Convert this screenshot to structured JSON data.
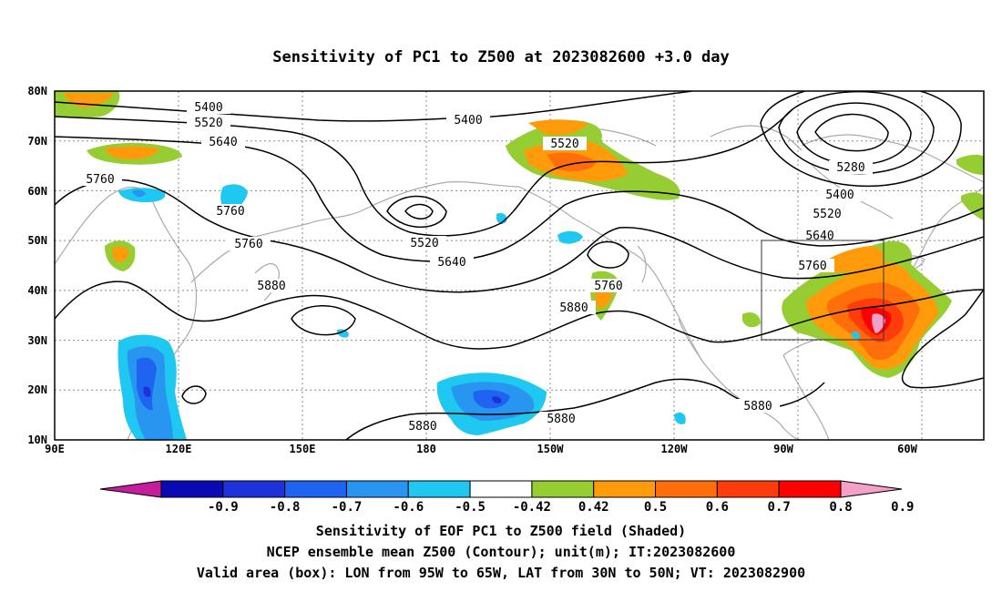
{
  "title": "Sensitivity of PC1 to Z500 at 2023082600 +3.0 day",
  "lon_labels": [
    "90E",
    "120E",
    "150E",
    "180",
    "150W",
    "120W",
    "90W",
    "60W"
  ],
  "lat_labels": [
    "80N",
    "70N",
    "60N",
    "50N",
    "40N",
    "30N",
    "20N",
    "10N"
  ],
  "contour_labels": [
    "5400",
    "5520",
    "5640",
    "5760",
    "5880",
    "5280"
  ],
  "colorbar": {
    "ticks": [
      "-0.9",
      "-0.8",
      "-0.7",
      "-0.6",
      "-0.5",
      "-0.42",
      "0.42",
      "0.5",
      "0.6",
      "0.7",
      "0.8",
      "0.9"
    ],
    "colors": [
      "#c41e9c",
      "#0a0ab4",
      "#1e32dc",
      "#1e64f0",
      "#2896f0",
      "#1ec8f0",
      "#ffffff",
      "#96cd32",
      "#ff9b0a",
      "#ff6e0a",
      "#ff3c0a",
      "#ff0000",
      "#f4a0c8"
    ]
  },
  "caption": [
    "Sensitivity of EOF PC1 to Z500 field (Shaded)",
    "NCEP ensemble mean Z500 (Contour); unit(m); IT:2023082600",
    "Valid area (box): LON from 95W to 65W, LAT from 30N to 50N; VT: 2023082900"
  ]
}
